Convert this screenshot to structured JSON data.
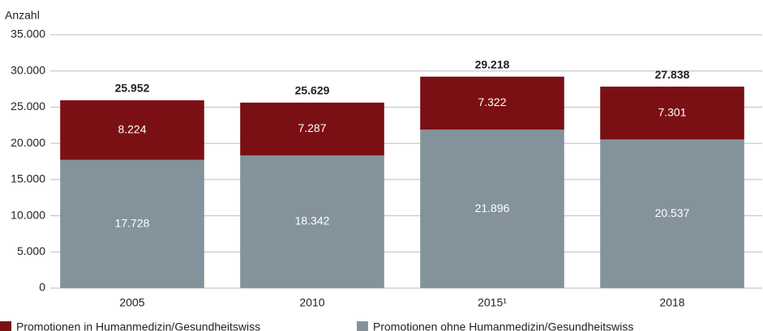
{
  "chart_data": {
    "type": "stacked_bar",
    "y_label": "Anzahl",
    "categories": [
      "2005",
      "2010",
      "2015¹",
      "2018"
    ],
    "series": [
      {
        "name": "Promotionen ohne Humanmedizin/Gesundheitswiss",
        "color": "#84939b",
        "values": [
          17728,
          18342,
          21896,
          20537
        ],
        "value_labels": [
          "17.728",
          "18.342",
          "21.896",
          "20.537"
        ]
      },
      {
        "name": "Promotionen in Humanmedizin/Gesundheitswiss",
        "color": "#7a1014",
        "values": [
          8224,
          7287,
          7322,
          7301
        ],
        "value_labels": [
          "8.224",
          "7.287",
          "7.322",
          "7.301"
        ]
      }
    ],
    "totals": {
      "values": [
        25952,
        25629,
        29218,
        27838
      ],
      "value_labels": [
        "25.952",
        "25.629",
        "29.218",
        "27.838"
      ]
    },
    "ylim": [
      0,
      35000
    ],
    "yticks": [
      0,
      {
        "value": 5000,
        "label": "5.000"
      },
      {
        "value": 10000,
        "label": "10.000"
      },
      {
        "value": 15000,
        "label": "15.000"
      },
      {
        "value": 20000,
        "label": "20.000"
      },
      {
        "value": 25000,
        "label": "25.000"
      },
      {
        "value": 30000,
        "label": "30.000"
      },
      {
        "value": 35000,
        "label": "35.000"
      }
    ],
    "grid": true
  }
}
